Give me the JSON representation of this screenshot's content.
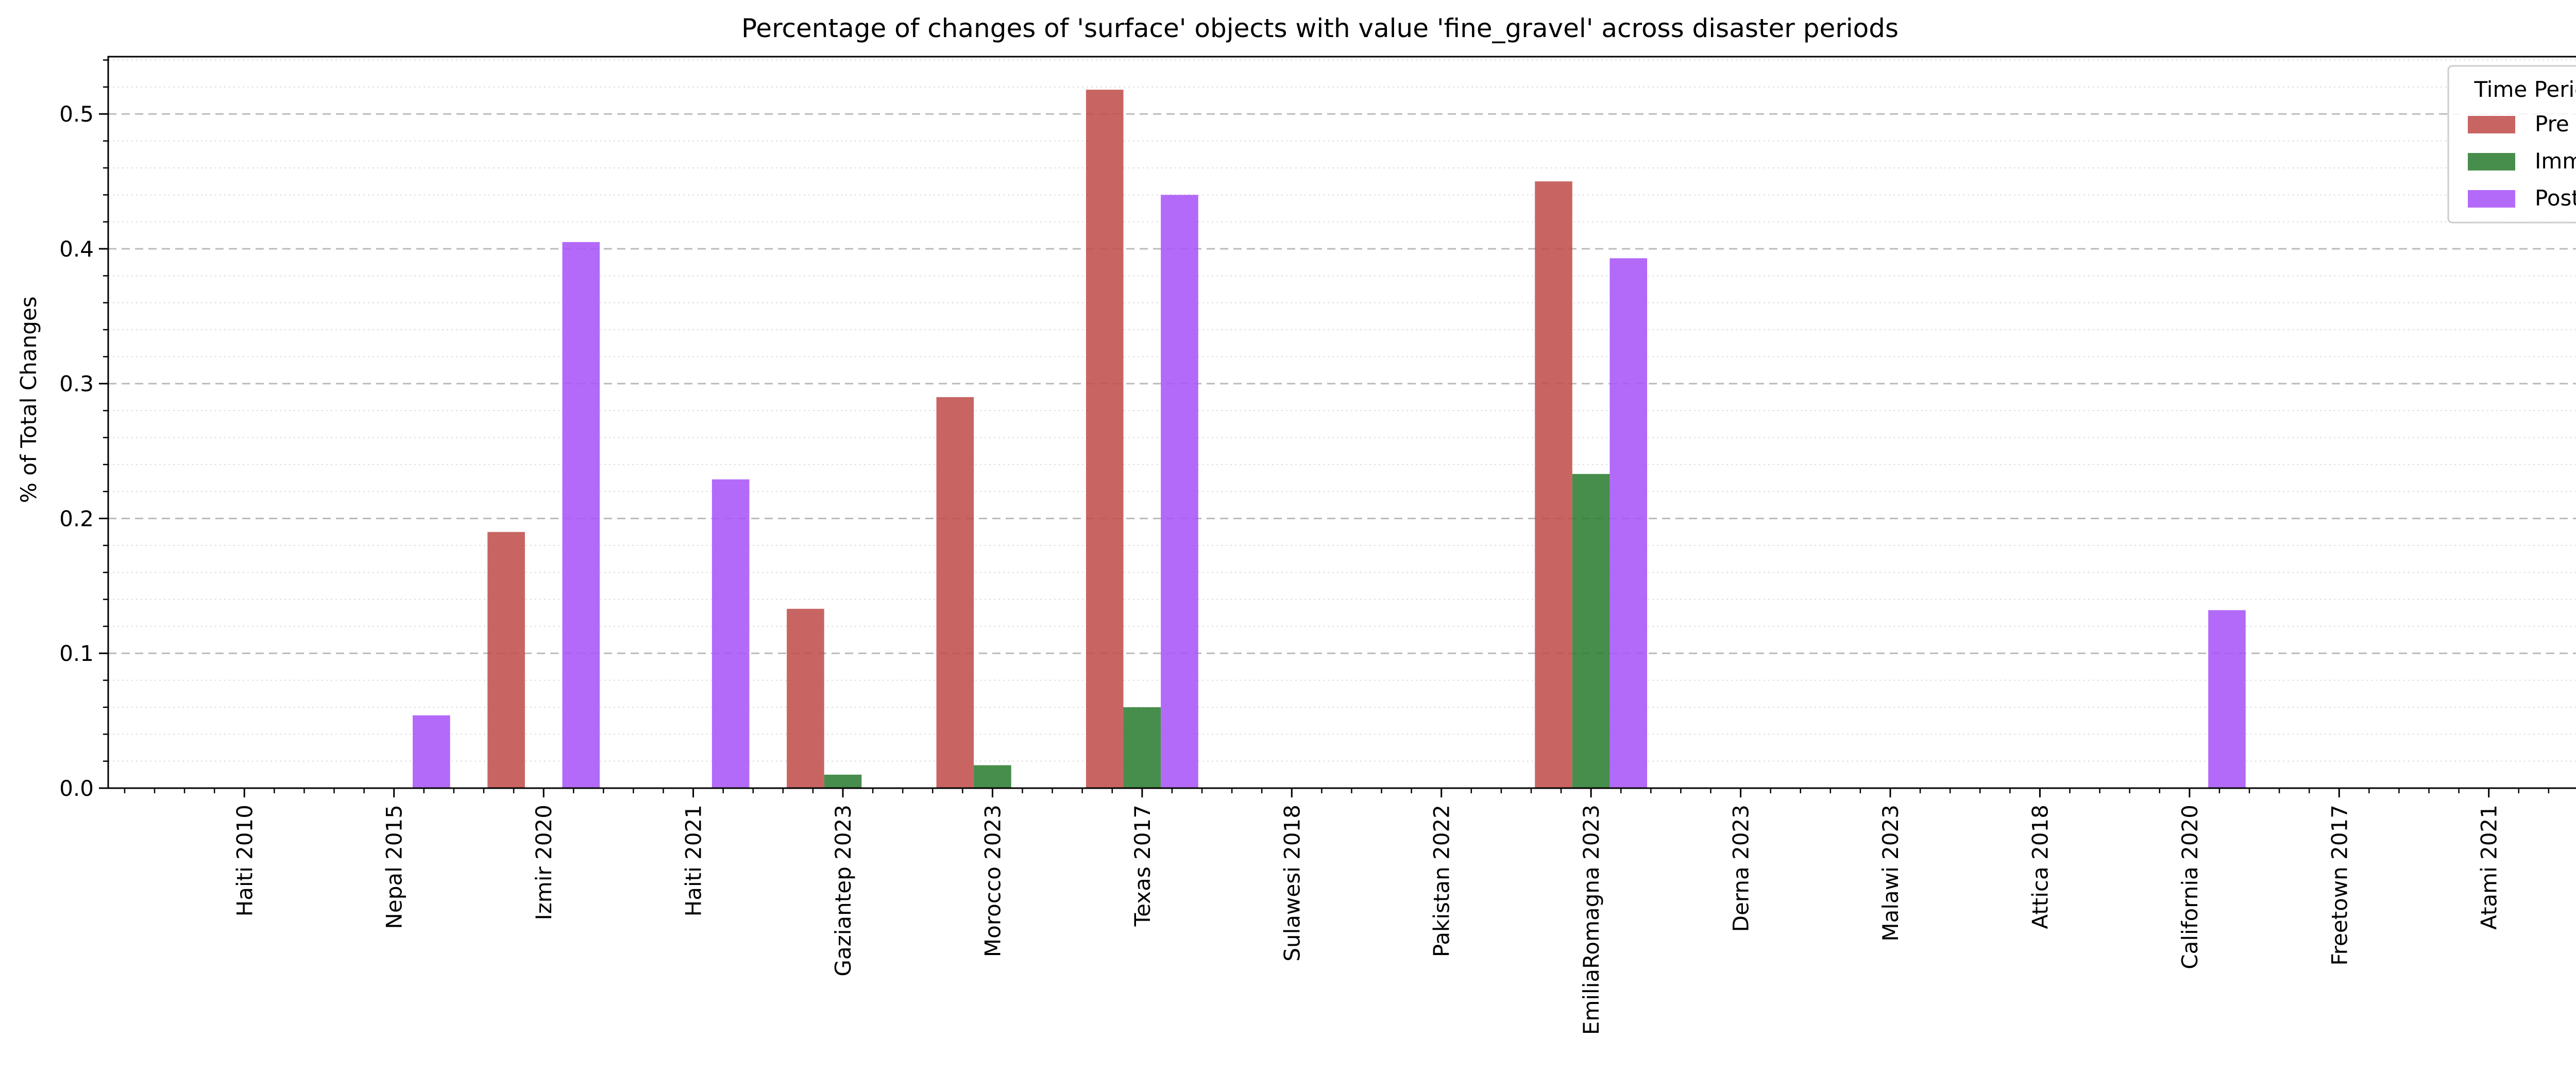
{
  "chart_data": {
    "type": "bar",
    "title": "Percentage of changes of 'surface' objects with value 'fine_gravel' across disaster periods",
    "xlabel": "",
    "ylabel": "% of Total Changes",
    "ylim": [
      0,
      0.5425
    ],
    "yticks": [
      0.0,
      0.1,
      0.2,
      0.3,
      0.4,
      0.5
    ],
    "ytick_labels": [
      "0.0",
      "0.1",
      "0.2",
      "0.3",
      "0.4",
      "0.5"
    ],
    "grid": "horizontal dashed major, dotted minor",
    "legend": {
      "title": "Time Period",
      "placement": "top-right"
    },
    "categories": [
      "Haiti 2010",
      "Nepal 2015",
      "Izmir 2020",
      "Haiti 2021",
      "Gaziantep 2023",
      "Morocco 2023",
      "Texas 2017",
      "Sulawesi 2018",
      "Pakistan 2022",
      "EmiliaRomagna 2023",
      "Derna 2023",
      "Malawi 2023",
      "Attica 2018",
      "California 2020",
      "Freetown 2017",
      "Atami 2021"
    ],
    "series": [
      {
        "name": "Pre",
        "color": "#c0504d",
        "values": [
          0,
          0,
          0.19,
          0,
          0.133,
          0.29,
          0.518,
          0,
          0,
          0.45,
          0,
          0,
          0,
          0,
          0,
          0
        ]
      },
      {
        "name": "Imm",
        "color": "#2e7d32",
        "values": [
          0,
          0,
          0,
          0,
          0.01,
          0.017,
          0.06,
          0,
          0,
          0.233,
          0,
          0,
          0,
          0,
          0,
          0
        ]
      },
      {
        "name": "Post",
        "color": "#a855f7",
        "values": [
          0,
          0.054,
          0.405,
          0.229,
          0,
          0,
          0.44,
          0,
          0,
          0.393,
          0,
          0,
          0,
          0.132,
          0,
          0
        ]
      }
    ]
  }
}
